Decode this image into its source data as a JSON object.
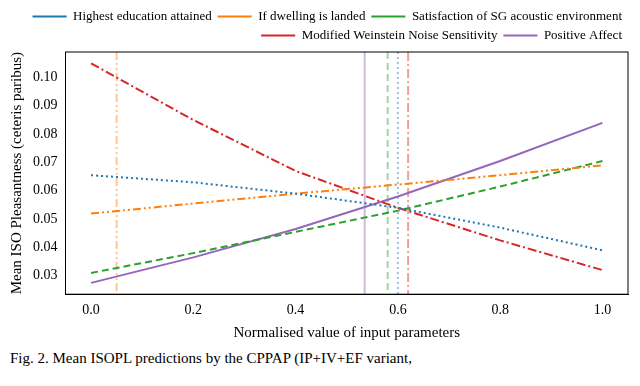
{
  "chart_data": {
    "type": "line",
    "caption": "Fig. 2. Mean ISOPL predictions by the CPPAP (IP+IV+EF variant,",
    "xlabel": "Normalised value of input parameters",
    "ylabel": "Mean ISO Pleasantness (ceteris paribus)",
    "x": [
      0,
      0.2,
      0.4,
      0.6,
      0.8,
      1
    ],
    "xlim": [
      -0.05,
      1.05
    ],
    "xticks": [
      {
        "value": 0,
        "label": "0.0"
      },
      0.2,
      0.4,
      0.6,
      0.8,
      {
        "value": 1,
        "label": "1.0"
      }
    ],
    "ylim": [
      0.0235,
      0.109
    ],
    "yticks": [
      0.03,
      0.04,
      0.05,
      0.06,
      0.07,
      0.08,
      0.09,
      {
        "value": 0.1,
        "label": "0.10"
      }
    ],
    "grid": false,
    "legend": "upper right",
    "series": [
      {
        "name": "Highest education attained",
        "color": "#1f77b4",
        "line_style": "dotted",
        "values": [
          0.0655,
          0.063,
          0.059,
          0.054,
          0.047,
          0.039
        ],
        "mean": 0.6
      },
      {
        "name": "If dwelling is landed",
        "color": "#ff7f0e",
        "line_style": "dashdotdot",
        "values": [
          0.052,
          0.0555,
          0.059,
          0.0622,
          0.0655,
          0.069
        ],
        "mean": 0.05
      },
      {
        "name": "Satisfaction of SG acoustic environment",
        "color": "#2ca02c",
        "line_style": "dashed",
        "values": [
          0.031,
          0.038,
          0.0455,
          0.053,
          0.0615,
          0.0705
        ],
        "mean": 0.58
      },
      {
        "name": "Modified Weinstein Noise Sensitivity",
        "color": "#d62728",
        "line_style": "dashdot",
        "values": [
          0.105,
          0.085,
          0.067,
          0.054,
          0.0425,
          0.032
        ],
        "mean": 0.62
      },
      {
        "name": "Positive Affect",
        "color": "#9467bd",
        "line_style": "solid",
        "values": [
          0.0275,
          0.0365,
          0.0465,
          0.058,
          0.0705,
          0.084
        ],
        "mean": 0.535
      }
    ]
  }
}
